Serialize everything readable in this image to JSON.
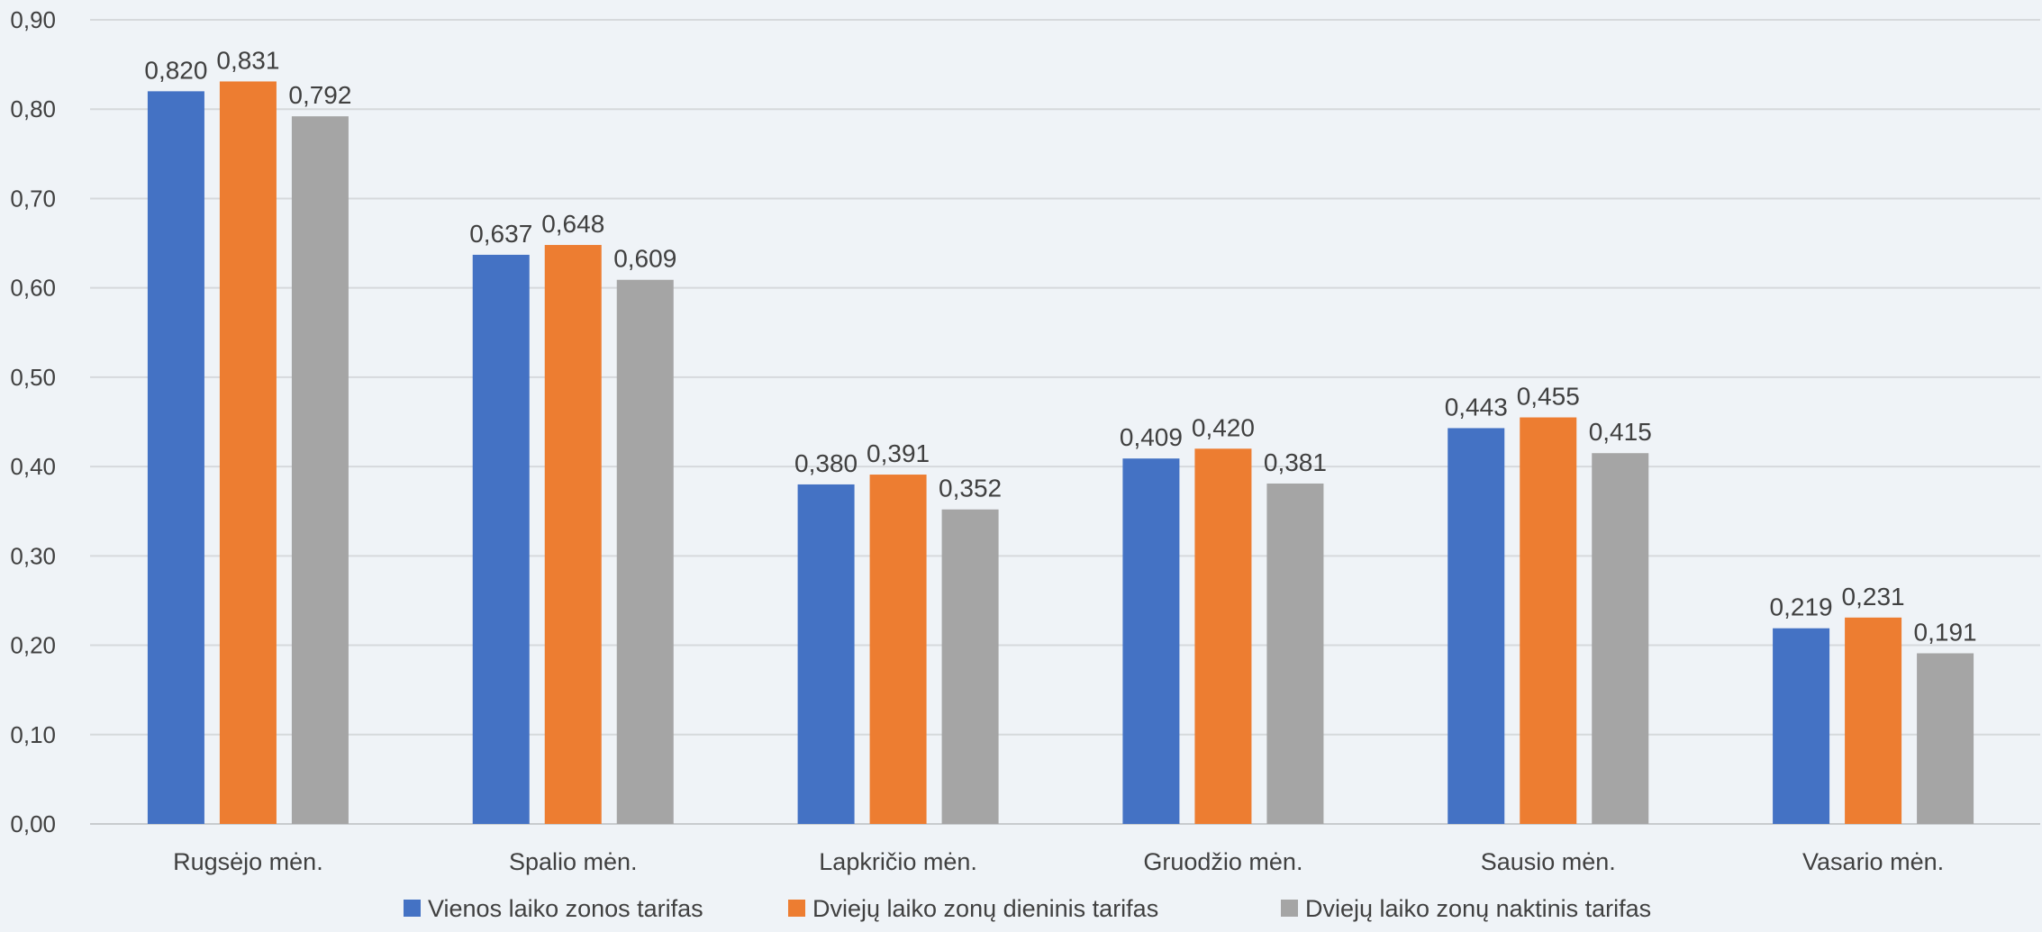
{
  "chart_data": {
    "type": "bar",
    "categories": [
      "Rugsėjo mėn.",
      "Spalio mėn.",
      "Lapkričio mėn.",
      "Gruodžio mėn.",
      "Sausio mėn.",
      "Vasario mėn."
    ],
    "series": [
      {
        "name": "Vienos laiko zonos tarifas",
        "color": "#4472c4",
        "values": [
          0.82,
          0.637,
          0.38,
          0.409,
          0.443,
          0.219
        ],
        "labels": [
          "0,820",
          "0,637",
          "0,380",
          "0,409",
          "0,443",
          "0,219"
        ]
      },
      {
        "name": "Dviejų laiko zonų dieninis tarifas",
        "color": "#ed7d31",
        "values": [
          0.831,
          0.648,
          0.391,
          0.42,
          0.455,
          0.231
        ],
        "labels": [
          "0,831",
          "0,648",
          "0,391",
          "0,420",
          "0,455",
          "0,231"
        ]
      },
      {
        "name": "Dviejų laiko zonų naktinis tarifas",
        "color": "#a5a5a5",
        "values": [
          0.792,
          0.609,
          0.352,
          0.381,
          0.415,
          0.191
        ],
        "labels": [
          "0,792",
          "0,609",
          "0,352",
          "0,381",
          "0,415",
          "0,191"
        ]
      }
    ],
    "ylim": [
      0,
      0.9
    ],
    "yticks": [
      "0,00",
      "0,10",
      "0,20",
      "0,30",
      "0,40",
      "0,50",
      "0,60",
      "0,70",
      "0,80",
      "0,90"
    ],
    "title": "",
    "xlabel": "",
    "ylabel": "",
    "grid": true,
    "legend": "bottom"
  }
}
